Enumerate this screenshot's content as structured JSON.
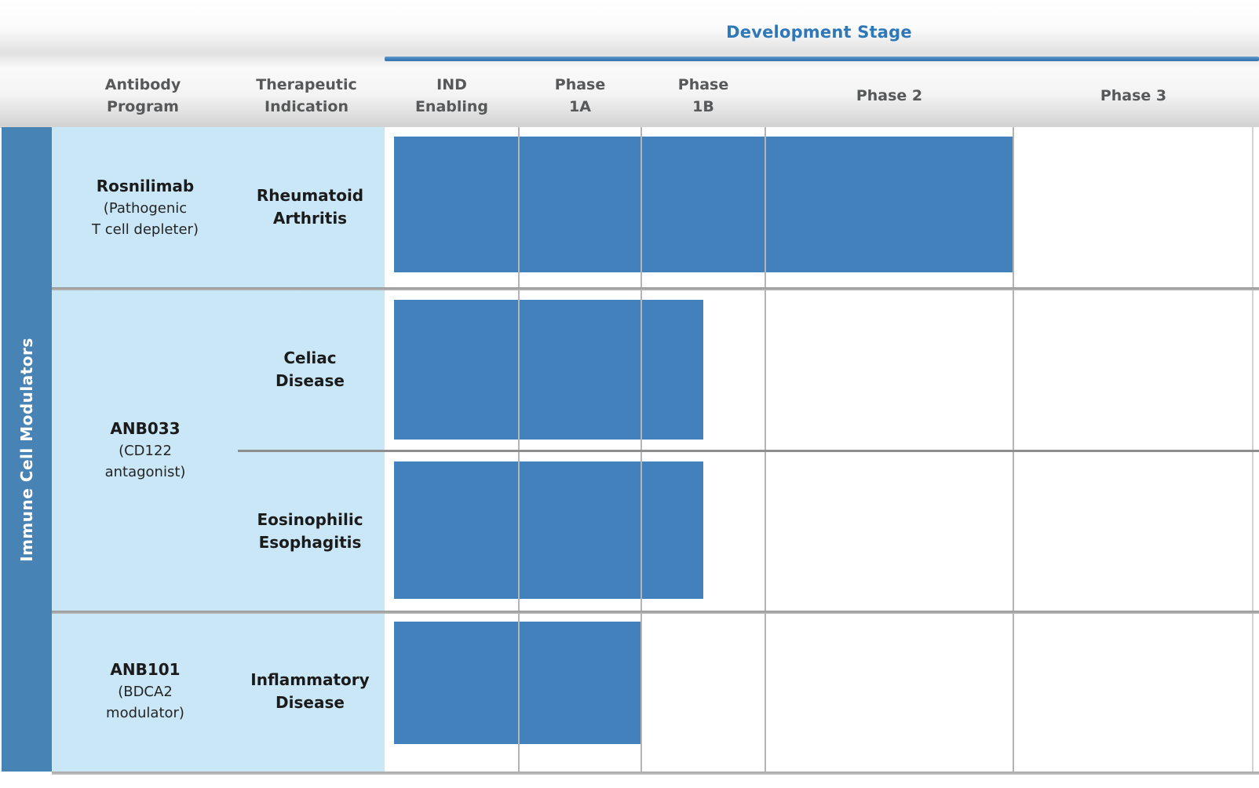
{
  "header": {
    "title": "Development Stage",
    "antibody_col": "Antibody\nProgram",
    "indication_col": "Therapeutic\nIndication",
    "stage_labels": [
      "IND\nEnabling",
      "Phase\n1A",
      "Phase\n1B",
      "Phase 2",
      "Phase 3"
    ]
  },
  "side_label": "Immune Cell Modulators",
  "rows_display": [
    {
      "program": "Rosnilimab",
      "detail": "(Pathogenic\nT cell depleter)",
      "indication": "Rheumatoid\nArthritis"
    },
    {
      "program": "ANB033",
      "detail": "(CD122\nantagonist)",
      "indication": "Celiac\nDisease"
    },
    {
      "program": "",
      "detail": "",
      "indication": "Eosinophilic\nEsophagitis"
    },
    {
      "program": "ANB101",
      "detail": "(BDCA2\nmodulator)",
      "indication": "Inflammatory\nDisease"
    }
  ],
  "chart_data": {
    "type": "gantt",
    "title": "Development Stage",
    "group": "Immune Cell Modulators",
    "stages": [
      "IND Enabling",
      "Phase 1A",
      "Phase 1B",
      "Phase 2",
      "Phase 3"
    ],
    "rows": [
      {
        "program": "Rosnilimab (Pathogenic T cell depleter)",
        "indication": "Rheumatoid Arthritis",
        "progress_through": "Phase 2",
        "end_stage_index": 3,
        "end_stage_fraction": 1.0
      },
      {
        "program": "ANB033 (CD122 antagonist)",
        "indication": "Celiac Disease",
        "progress_through": "Phase 1B (partial)",
        "end_stage_index": 2,
        "end_stage_fraction": 0.5
      },
      {
        "program": "ANB033 (CD122 antagonist)",
        "indication": "Eosinophilic Esophagitis",
        "progress_through": "Phase 1B (partial)",
        "end_stage_index": 2,
        "end_stage_fraction": 0.5
      },
      {
        "program": "ANB101 (BDCA2 modulator)",
        "indication": "Inflammatory Disease",
        "progress_through": "Phase 1A",
        "end_stage_index": 1,
        "end_stage_fraction": 1.0
      }
    ]
  },
  "colors": {
    "bar": "#4281BC",
    "side_strip": "#4883B6",
    "row_label_bg": "#CAE7F7",
    "accent_blue": "#2F78B8",
    "header_text": "#57585A",
    "grid_line": "#B4B4B4",
    "divider_gray": "#A8A8A8"
  }
}
